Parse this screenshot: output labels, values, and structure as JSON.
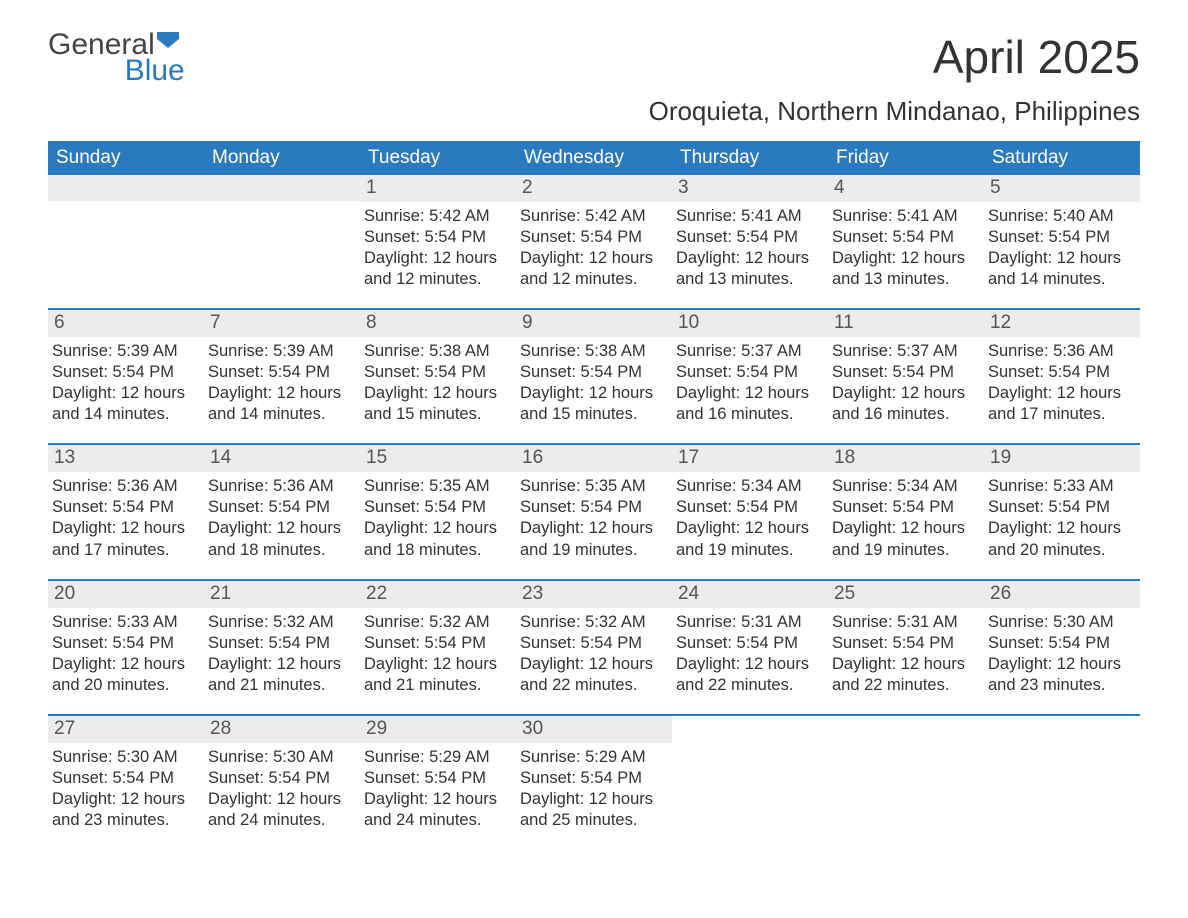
{
  "brand": {
    "word1": "General",
    "word2": "Blue",
    "flag_color": "#2a7ac0",
    "text_color": "#444444"
  },
  "title": "April 2025",
  "subtitle": "Oroquieta, Northern Mindanao, Philippines",
  "colors": {
    "header_bg": "#2a7ac0",
    "header_text": "#ffffff",
    "daynum_bg": "#ececec",
    "week_border": "#2a7ac0",
    "body_text": "#333333"
  },
  "day_names": [
    "Sunday",
    "Monday",
    "Tuesday",
    "Wednesday",
    "Thursday",
    "Friday",
    "Saturday"
  ],
  "labels": {
    "sunrise": "Sunrise:",
    "sunset": "Sunset:",
    "daylight": "Daylight:"
  },
  "weeks": [
    [
      {
        "blank": true
      },
      {
        "blank": true
      },
      {
        "n": "1",
        "sunrise": "5:42 AM",
        "sunset": "5:54 PM",
        "daylight": "12 hours and 12 minutes."
      },
      {
        "n": "2",
        "sunrise": "5:42 AM",
        "sunset": "5:54 PM",
        "daylight": "12 hours and 12 minutes."
      },
      {
        "n": "3",
        "sunrise": "5:41 AM",
        "sunset": "5:54 PM",
        "daylight": "12 hours and 13 minutes."
      },
      {
        "n": "4",
        "sunrise": "5:41 AM",
        "sunset": "5:54 PM",
        "daylight": "12 hours and 13 minutes."
      },
      {
        "n": "5",
        "sunrise": "5:40 AM",
        "sunset": "5:54 PM",
        "daylight": "12 hours and 14 minutes."
      }
    ],
    [
      {
        "n": "6",
        "sunrise": "5:39 AM",
        "sunset": "5:54 PM",
        "daylight": "12 hours and 14 minutes."
      },
      {
        "n": "7",
        "sunrise": "5:39 AM",
        "sunset": "5:54 PM",
        "daylight": "12 hours and 14 minutes."
      },
      {
        "n": "8",
        "sunrise": "5:38 AM",
        "sunset": "5:54 PM",
        "daylight": "12 hours and 15 minutes."
      },
      {
        "n": "9",
        "sunrise": "5:38 AM",
        "sunset": "5:54 PM",
        "daylight": "12 hours and 15 minutes."
      },
      {
        "n": "10",
        "sunrise": "5:37 AM",
        "sunset": "5:54 PM",
        "daylight": "12 hours and 16 minutes."
      },
      {
        "n": "11",
        "sunrise": "5:37 AM",
        "sunset": "5:54 PM",
        "daylight": "12 hours and 16 minutes."
      },
      {
        "n": "12",
        "sunrise": "5:36 AM",
        "sunset": "5:54 PM",
        "daylight": "12 hours and 17 minutes."
      }
    ],
    [
      {
        "n": "13",
        "sunrise": "5:36 AM",
        "sunset": "5:54 PM",
        "daylight": "12 hours and 17 minutes."
      },
      {
        "n": "14",
        "sunrise": "5:36 AM",
        "sunset": "5:54 PM",
        "daylight": "12 hours and 18 minutes."
      },
      {
        "n": "15",
        "sunrise": "5:35 AM",
        "sunset": "5:54 PM",
        "daylight": "12 hours and 18 minutes."
      },
      {
        "n": "16",
        "sunrise": "5:35 AM",
        "sunset": "5:54 PM",
        "daylight": "12 hours and 19 minutes."
      },
      {
        "n": "17",
        "sunrise": "5:34 AM",
        "sunset": "5:54 PM",
        "daylight": "12 hours and 19 minutes."
      },
      {
        "n": "18",
        "sunrise": "5:34 AM",
        "sunset": "5:54 PM",
        "daylight": "12 hours and 19 minutes."
      },
      {
        "n": "19",
        "sunrise": "5:33 AM",
        "sunset": "5:54 PM",
        "daylight": "12 hours and 20 minutes."
      }
    ],
    [
      {
        "n": "20",
        "sunrise": "5:33 AM",
        "sunset": "5:54 PM",
        "daylight": "12 hours and 20 minutes."
      },
      {
        "n": "21",
        "sunrise": "5:32 AM",
        "sunset": "5:54 PM",
        "daylight": "12 hours and 21 minutes."
      },
      {
        "n": "22",
        "sunrise": "5:32 AM",
        "sunset": "5:54 PM",
        "daylight": "12 hours and 21 minutes."
      },
      {
        "n": "23",
        "sunrise": "5:32 AM",
        "sunset": "5:54 PM",
        "daylight": "12 hours and 22 minutes."
      },
      {
        "n": "24",
        "sunrise": "5:31 AM",
        "sunset": "5:54 PM",
        "daylight": "12 hours and 22 minutes."
      },
      {
        "n": "25",
        "sunrise": "5:31 AM",
        "sunset": "5:54 PM",
        "daylight": "12 hours and 22 minutes."
      },
      {
        "n": "26",
        "sunrise": "5:30 AM",
        "sunset": "5:54 PM",
        "daylight": "12 hours and 23 minutes."
      }
    ],
    [
      {
        "n": "27",
        "sunrise": "5:30 AM",
        "sunset": "5:54 PM",
        "daylight": "12 hours and 23 minutes."
      },
      {
        "n": "28",
        "sunrise": "5:30 AM",
        "sunset": "5:54 PM",
        "daylight": "12 hours and 24 minutes."
      },
      {
        "n": "29",
        "sunrise": "5:29 AM",
        "sunset": "5:54 PM",
        "daylight": "12 hours and 24 minutes."
      },
      {
        "n": "30",
        "sunrise": "5:29 AM",
        "sunset": "5:54 PM",
        "daylight": "12 hours and 25 minutes."
      },
      {
        "blank": true,
        "noBg": true
      },
      {
        "blank": true,
        "noBg": true
      },
      {
        "blank": true,
        "noBg": true
      }
    ]
  ]
}
